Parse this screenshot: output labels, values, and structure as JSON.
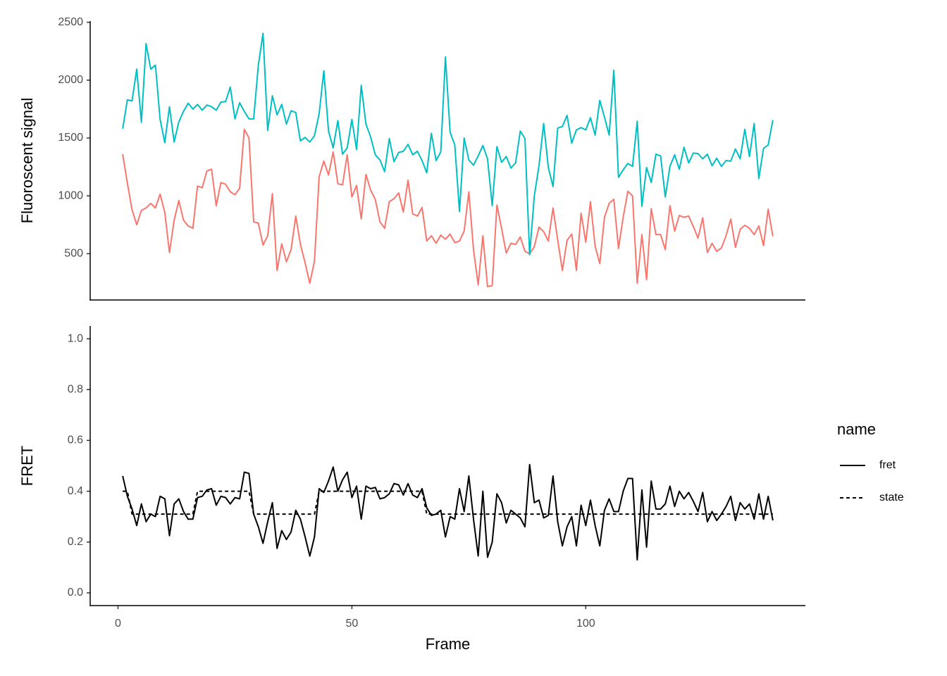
{
  "chart_data": [
    {
      "type": "line",
      "ylabel": "Fluoroscent signal",
      "xlim": [
        -5.95,
        146.95
      ],
      "ylim": [
        100,
        2510
      ],
      "yticks": [
        500,
        1000,
        1500,
        2000,
        2500
      ],
      "x": [
        1,
        2,
        3,
        4,
        5,
        6,
        7,
        8,
        9,
        10,
        11,
        12,
        13,
        14,
        15,
        16,
        17,
        18,
        19,
        20,
        21,
        22,
        23,
        24,
        25,
        26,
        27,
        28,
        29,
        30,
        31,
        32,
        33,
        34,
        35,
        36,
        37,
        38,
        39,
        40,
        41,
        42,
        43,
        44,
        45,
        46,
        47,
        48,
        49,
        50,
        51,
        52,
        53,
        54,
        55,
        56,
        57,
        58,
        59,
        60,
        61,
        62,
        63,
        64,
        65,
        66,
        67,
        68,
        69,
        70,
        71,
        72,
        73,
        74,
        75,
        76,
        77,
        78,
        79,
        80,
        81,
        82,
        83,
        84,
        85,
        86,
        87,
        88,
        89,
        90,
        91,
        92,
        93,
        94,
        95,
        96,
        97,
        98,
        99,
        100,
        101,
        102,
        103,
        104,
        105,
        106,
        107,
        108,
        109,
        110,
        111,
        112,
        113,
        114,
        115,
        116,
        117,
        118,
        119,
        120,
        121,
        122,
        123,
        124,
        125,
        126,
        127,
        128,
        129,
        130,
        131,
        132,
        133,
        134,
        135,
        136,
        137,
        138,
        139,
        140
      ],
      "series": [
        {
          "color": "#F8766D",
          "linetype": "solid",
          "values": [
            1360,
            1110,
            880,
            750,
            875,
            895,
            935,
            895,
            1015,
            855,
            510,
            790,
            960,
            790,
            740,
            720,
            1085,
            1070,
            1215,
            1230,
            915,
            1115,
            1100,
            1035,
            1010,
            1065,
            1575,
            1500,
            775,
            765,
            575,
            655,
            1020,
            355,
            585,
            430,
            535,
            825,
            580,
            420,
            245,
            435,
            1165,
            1300,
            1180,
            1380,
            1105,
            1095,
            1355,
            990,
            1090,
            800,
            1185,
            1050,
            970,
            775,
            720,
            950,
            975,
            1025,
            860,
            1135,
            845,
            825,
            900,
            610,
            655,
            590,
            660,
            625,
            670,
            595,
            610,
            695,
            1035,
            535,
            230,
            655,
            215,
            225,
            920,
            720,
            505,
            590,
            580,
            645,
            520,
            500,
            560,
            730,
            690,
            610,
            895,
            620,
            355,
            615,
            670,
            355,
            850,
            600,
            950,
            565,
            415,
            815,
            935,
            970,
            545,
            815,
            1040,
            1000,
            245,
            665,
            275,
            890,
            665,
            665,
            535,
            915,
            695,
            830,
            815,
            825,
            735,
            635,
            810,
            510,
            590,
            520,
            550,
            655,
            800,
            555,
            710,
            745,
            720,
            665,
            740,
            570,
            885,
            650
          ]
        },
        {
          "color": "#00BFC4",
          "linetype": "solid",
          "values": [
            1580,
            1830,
            1820,
            2095,
            1635,
            2315,
            2095,
            2130,
            1660,
            1460,
            1770,
            1465,
            1640,
            1730,
            1800,
            1750,
            1790,
            1740,
            1785,
            1770,
            1740,
            1810,
            1815,
            1940,
            1665,
            1805,
            1730,
            1665,
            1665,
            2130,
            2405,
            1565,
            1865,
            1700,
            1790,
            1620,
            1735,
            1720,
            1475,
            1505,
            1465,
            1520,
            1710,
            2080,
            1560,
            1415,
            1650,
            1360,
            1415,
            1660,
            1400,
            1955,
            1620,
            1510,
            1355,
            1310,
            1210,
            1495,
            1295,
            1375,
            1385,
            1445,
            1355,
            1385,
            1305,
            1200,
            1540,
            1305,
            1380,
            2200,
            1550,
            1440,
            865,
            1500,
            1310,
            1265,
            1345,
            1435,
            1320,
            915,
            1425,
            1290,
            1340,
            1240,
            1285,
            1560,
            1495,
            490,
            1000,
            1260,
            1625,
            1245,
            1080,
            1585,
            1600,
            1695,
            1455,
            1570,
            1590,
            1570,
            1675,
            1525,
            1825,
            1680,
            1525,
            2085,
            1160,
            1225,
            1280,
            1255,
            1645,
            910,
            1245,
            1115,
            1360,
            1345,
            990,
            1255,
            1355,
            1230,
            1420,
            1285,
            1370,
            1365,
            1320,
            1360,
            1260,
            1325,
            1255,
            1305,
            1300,
            1405,
            1320,
            1575,
            1340,
            1625,
            1150,
            1410,
            1440,
            1655
          ]
        }
      ]
    },
    {
      "type": "line",
      "ylabel": "FRET",
      "xlabel": "Frame",
      "legend_title": "name",
      "xlim": [
        -5.95,
        146.95
      ],
      "xticks": [
        0,
        50,
        100
      ],
      "ylim": [
        -0.05,
        1.05
      ],
      "yticks": [
        {
          "value": 0,
          "label": "0.0"
        },
        0.2,
        0.4,
        0.6,
        0.8,
        {
          "value": 1,
          "label": "1.0"
        }
      ],
      "x": [
        1,
        2,
        3,
        4,
        5,
        6,
        7,
        8,
        9,
        10,
        11,
        12,
        13,
        14,
        15,
        16,
        17,
        18,
        19,
        20,
        21,
        22,
        23,
        24,
        25,
        26,
        27,
        28,
        29,
        30,
        31,
        32,
        33,
        34,
        35,
        36,
        37,
        38,
        39,
        40,
        41,
        42,
        43,
        44,
        45,
        46,
        47,
        48,
        49,
        50,
        51,
        52,
        53,
        54,
        55,
        56,
        57,
        58,
        59,
        60,
        61,
        62,
        63,
        64,
        65,
        66,
        67,
        68,
        69,
        70,
        71,
        72,
        73,
        74,
        75,
        76,
        77,
        78,
        79,
        80,
        81,
        82,
        83,
        84,
        85,
        86,
        87,
        88,
        89,
        90,
        91,
        92,
        93,
        94,
        95,
        96,
        97,
        98,
        99,
        100,
        101,
        102,
        103,
        104,
        105,
        106,
        107,
        108,
        109,
        110,
        111,
        112,
        113,
        114,
        115,
        116,
        117,
        118,
        119,
        120,
        121,
        122,
        123,
        124,
        125,
        126,
        127,
        128,
        129,
        130,
        131,
        132,
        133,
        134,
        135,
        136,
        137,
        138,
        139,
        140
      ],
      "series": [
        {
          "name": "fret",
          "color": "#000000",
          "linetype": "solid",
          "values": [
            0.46,
            0.38,
            0.33,
            0.265,
            0.35,
            0.28,
            0.31,
            0.3,
            0.38,
            0.37,
            0.225,
            0.35,
            0.37,
            0.32,
            0.29,
            0.29,
            0.375,
            0.38,
            0.405,
            0.41,
            0.345,
            0.38,
            0.375,
            0.35,
            0.375,
            0.37,
            0.475,
            0.47,
            0.31,
            0.26,
            0.195,
            0.28,
            0.355,
            0.175,
            0.245,
            0.21,
            0.24,
            0.325,
            0.29,
            0.22,
            0.145,
            0.22,
            0.41,
            0.395,
            0.44,
            0.495,
            0.4,
            0.445,
            0.475,
            0.375,
            0.42,
            0.29,
            0.42,
            0.41,
            0.415,
            0.37,
            0.375,
            0.39,
            0.43,
            0.425,
            0.385,
            0.43,
            0.385,
            0.375,
            0.41,
            0.335,
            0.305,
            0.31,
            0.325,
            0.22,
            0.3,
            0.29,
            0.41,
            0.32,
            0.46,
            0.29,
            0.145,
            0.4,
            0.14,
            0.2,
            0.39,
            0.355,
            0.275,
            0.325,
            0.31,
            0.295,
            0.26,
            0.505,
            0.355,
            0.365,
            0.295,
            0.305,
            0.46,
            0.28,
            0.185,
            0.26,
            0.3,
            0.185,
            0.345,
            0.265,
            0.365,
            0.265,
            0.185,
            0.325,
            0.37,
            0.32,
            0.32,
            0.4,
            0.45,
            0.45,
            0.13,
            0.405,
            0.18,
            0.44,
            0.33,
            0.33,
            0.35,
            0.42,
            0.34,
            0.4,
            0.37,
            0.395,
            0.36,
            0.32,
            0.395,
            0.28,
            0.32,
            0.285,
            0.31,
            0.34,
            0.38,
            0.285,
            0.355,
            0.33,
            0.35,
            0.29,
            0.39,
            0.29,
            0.38,
            0.285
          ]
        },
        {
          "name": "state",
          "color": "#000000",
          "linetype": "dashed",
          "values": [
            0.4,
            0.4,
            0.31,
            0.31,
            0.31,
            0.31,
            0.31,
            0.31,
            0.31,
            0.31,
            0.31,
            0.31,
            0.31,
            0.31,
            0.31,
            0.31,
            0.4,
            0.4,
            0.4,
            0.4,
            0.4,
            0.4,
            0.4,
            0.4,
            0.4,
            0.4,
            0.4,
            0.4,
            0.31,
            0.31,
            0.31,
            0.31,
            0.31,
            0.31,
            0.31,
            0.31,
            0.31,
            0.31,
            0.31,
            0.31,
            0.31,
            0.31,
            0.4,
            0.4,
            0.4,
            0.4,
            0.4,
            0.4,
            0.4,
            0.4,
            0.4,
            0.4,
            0.4,
            0.4,
            0.4,
            0.4,
            0.4,
            0.4,
            0.4,
            0.4,
            0.4,
            0.4,
            0.4,
            0.4,
            0.4,
            0.31,
            0.31,
            0.31,
            0.31,
            0.31,
            0.31,
            0.31,
            0.31,
            0.31,
            0.31,
            0.31,
            0.31,
            0.31,
            0.31,
            0.31,
            0.31,
            0.31,
            0.31,
            0.31,
            0.31,
            0.31,
            0.31,
            0.31,
            0.31,
            0.31,
            0.31,
            0.31,
            0.31,
            0.31,
            0.31,
            0.31,
            0.31,
            0.31,
            0.31,
            0.31,
            0.31,
            0.31,
            0.31,
            0.31,
            0.31,
            0.31,
            0.31,
            0.31,
            0.31,
            0.31,
            0.31,
            0.31,
            0.31,
            0.31,
            0.31,
            0.31,
            0.31,
            0.31,
            0.31,
            0.31,
            0.31,
            0.31,
            0.31,
            0.31,
            0.31,
            0.31,
            0.31,
            0.31,
            0.31,
            0.31,
            0.31,
            0.31,
            0.31,
            0.31,
            0.31,
            0.31,
            0.31,
            0.31,
            0.31,
            0.31
          ]
        }
      ]
    }
  ]
}
